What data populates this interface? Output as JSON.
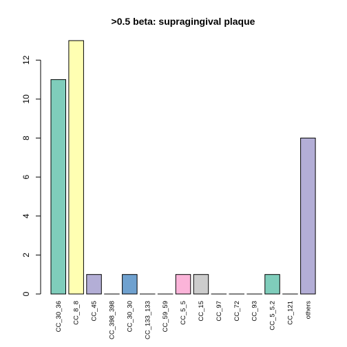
{
  "chart_data": {
    "type": "bar",
    "title": ">0.5 beta:  supragingival plaque",
    "xlabel": "",
    "ylabel": "",
    "ylim": [
      0,
      13
    ],
    "yticks": [
      0,
      2,
      4,
      6,
      8,
      10,
      12
    ],
    "grid": false,
    "categories": [
      "CC_30_36",
      "CC_8_8",
      "CC_45",
      "CC_398_398",
      "CC_30_30",
      "CC_133_133",
      "CC_59_59",
      "CC_5_5",
      "CC_15",
      "CC_97",
      "CC_72",
      "CC_93",
      "CC_5_5.2",
      "CC_121",
      "others"
    ],
    "values": [
      11,
      13,
      1,
      0,
      1,
      0,
      0,
      1,
      1,
      0,
      0,
      0,
      1,
      0,
      8
    ],
    "colors": [
      "#7fcdbb",
      "#ffffb2",
      "#b3aed6",
      "#b3aed6",
      "#6fa1cf",
      "#6fa1cf",
      "#fbb4ae",
      "#fbb4d9",
      "#cccccc",
      "#cccccc",
      "#7fcdbb",
      "#7fcdbb",
      "#7fcdbb",
      "#ffffb2",
      "#b3aed6"
    ]
  }
}
